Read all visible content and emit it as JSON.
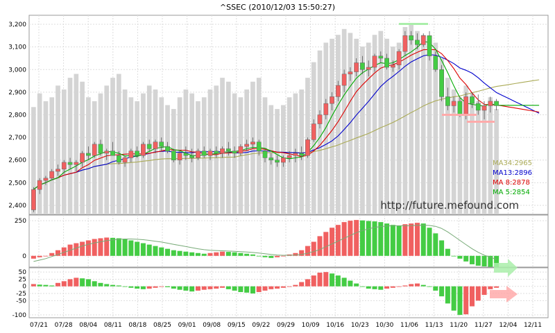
{
  "chart_data": {
    "type": "candlestick",
    "title": "^SSEC  (2010/12/03 15:50:27)",
    "watermark": "http://future.mefound.com",
    "x_labels": [
      "07/21",
      "07/28",
      "08/04",
      "08/11",
      "08/18",
      "08/25",
      "09/01",
      "09/08",
      "09/15",
      "09/22",
      "09/29",
      "10/09",
      "10/16",
      "10/23",
      "10/30",
      "11/06",
      "11/13",
      "11/20",
      "11/27",
      "12/04",
      "12/11"
    ],
    "price_axis": {
      "ticks": [
        2400,
        2500,
        2600,
        2700,
        2800,
        2900,
        3000,
        3100,
        3200
      ],
      "ylim": [
        2360,
        3240
      ]
    },
    "macd_axis": {
      "ticks": [
        0,
        250
      ],
      "ylim": [
        -80,
        290
      ]
    },
    "kdj_axis": {
      "ticks": [
        50,
        25,
        0,
        -25,
        -50,
        -100
      ],
      "ylim": [
        -110,
        65
      ]
    },
    "legend": [
      {
        "label": "MA34:2965",
        "color": "#aaaa55"
      },
      {
        "label": "MA13:2896",
        "color": "#0000cc"
      },
      {
        "label": "MA  8:2878",
        "color": "#dd0000"
      },
      {
        "label": "MA  5:2854",
        "color": "#00aa00"
      }
    ],
    "colors": {
      "up": "#f06060",
      "down": "#44cc44",
      "volume": "#d4d4d4",
      "grid": "#dddddd"
    },
    "ohlc": [
      [
        2380,
        2480,
        2370,
        2470
      ],
      [
        2470,
        2520,
        2450,
        2510
      ],
      [
        2510,
        2530,
        2490,
        2520
      ],
      [
        2520,
        2560,
        2510,
        2550
      ],
      [
        2550,
        2580,
        2530,
        2560
      ],
      [
        2560,
        2600,
        2540,
        2590
      ],
      [
        2590,
        2610,
        2560,
        2580
      ],
      [
        2580,
        2600,
        2550,
        2590
      ],
      [
        2590,
        2640,
        2570,
        2630
      ],
      [
        2630,
        2660,
        2600,
        2620
      ],
      [
        2620,
        2680,
        2610,
        2670
      ],
      [
        2670,
        2690,
        2620,
        2630
      ],
      [
        2630,
        2650,
        2600,
        2640
      ],
      [
        2640,
        2680,
        2620,
        2620
      ],
      [
        2620,
        2640,
        2580,
        2590
      ],
      [
        2590,
        2620,
        2570,
        2610
      ],
      [
        2610,
        2650,
        2590,
        2640
      ],
      [
        2640,
        2660,
        2610,
        2620
      ],
      [
        2620,
        2680,
        2610,
        2670
      ],
      [
        2670,
        2690,
        2640,
        2650
      ],
      [
        2650,
        2690,
        2630,
        2680
      ],
      [
        2680,
        2700,
        2640,
        2660
      ],
      [
        2660,
        2680,
        2630,
        2640
      ],
      [
        2640,
        2650,
        2590,
        2600
      ],
      [
        2600,
        2640,
        2580,
        2630
      ],
      [
        2630,
        2660,
        2600,
        2620
      ],
      [
        2620,
        2650,
        2590,
        2610
      ],
      [
        2610,
        2650,
        2600,
        2640
      ],
      [
        2640,
        2660,
        2610,
        2620
      ],
      [
        2620,
        2650,
        2600,
        2640
      ],
      [
        2640,
        2660,
        2610,
        2630
      ],
      [
        2630,
        2660,
        2610,
        2650
      ],
      [
        2650,
        2680,
        2620,
        2640
      ],
      [
        2640,
        2660,
        2610,
        2630
      ],
      [
        2630,
        2670,
        2620,
        2660
      ],
      [
        2660,
        2690,
        2640,
        2670
      ],
      [
        2670,
        2700,
        2650,
        2680
      ],
      [
        2680,
        2690,
        2620,
        2640
      ],
      [
        2640,
        2650,
        2590,
        2610
      ],
      [
        2610,
        2630,
        2580,
        2600
      ],
      [
        2600,
        2620,
        2570,
        2590
      ],
      [
        2590,
        2620,
        2570,
        2610
      ],
      [
        2610,
        2640,
        2590,
        2620
      ],
      [
        2620,
        2650,
        2590,
        2630
      ],
      [
        2630,
        2660,
        2600,
        2620
      ],
      [
        2620,
        2700,
        2610,
        2690
      ],
      [
        2690,
        2780,
        2680,
        2760
      ],
      [
        2760,
        2820,
        2740,
        2800
      ],
      [
        2800,
        2870,
        2780,
        2850
      ],
      [
        2850,
        2900,
        2820,
        2880
      ],
      [
        2880,
        2950,
        2860,
        2930
      ],
      [
        2930,
        3000,
        2900,
        2980
      ],
      [
        2980,
        3010,
        2950,
        2990
      ],
      [
        2990,
        3050,
        2970,
        3030
      ],
      [
        3030,
        3060,
        2980,
        3000
      ],
      [
        3000,
        3040,
        2970,
        3010
      ],
      [
        3010,
        3070,
        2990,
        3060
      ],
      [
        3060,
        3080,
        3030,
        3050
      ],
      [
        3050,
        3070,
        3000,
        3010
      ],
      [
        3010,
        3040,
        2990,
        3020
      ],
      [
        3020,
        3090,
        3000,
        3080
      ],
      [
        3080,
        3170,
        3060,
        3150
      ],
      [
        3150,
        3170,
        3110,
        3130
      ],
      [
        3130,
        3160,
        3090,
        3110
      ],
      [
        3110,
        3160,
        3100,
        3150
      ],
      [
        3150,
        3170,
        3040,
        3060
      ],
      [
        3060,
        3080,
        2990,
        3000
      ],
      [
        3000,
        3020,
        2860,
        2880
      ],
      [
        2880,
        2920,
        2820,
        2840
      ],
      [
        2840,
        2880,
        2810,
        2860
      ],
      [
        2860,
        2880,
        2790,
        2800
      ],
      [
        2800,
        2900,
        2780,
        2880
      ],
      [
        2880,
        2900,
        2830,
        2850
      ],
      [
        2850,
        2890,
        2800,
        2820
      ],
      [
        2820,
        2860,
        2780,
        2840
      ],
      [
        2840,
        2880,
        2810,
        2860
      ],
      [
        2860,
        2870,
        2820,
        2840
      ]
    ],
    "volume": [
      55,
      62,
      58,
      60,
      66,
      64,
      70,
      72,
      68,
      60,
      58,
      62,
      66,
      70,
      72,
      64,
      60,
      58,
      62,
      66,
      64,
      60,
      56,
      54,
      60,
      64,
      62,
      58,
      60,
      64,
      66,
      70,
      68,
      62,
      60,
      64,
      68,
      70,
      60,
      56,
      54,
      56,
      60,
      62,
      64,
      70,
      78,
      84,
      88,
      90,
      92,
      95,
      93,
      90,
      86,
      88,
      92,
      94,
      90,
      86,
      88,
      96,
      98,
      94,
      92,
      90,
      88,
      80,
      70,
      64,
      60,
      66,
      62,
      58,
      56,
      60,
      54
    ],
    "macd": [
      -20,
      -10,
      0,
      20,
      40,
      60,
      80,
      90,
      100,
      110,
      120,
      125,
      130,
      128,
      125,
      120,
      110,
      100,
      90,
      80,
      70,
      60,
      50,
      40,
      35,
      30,
      25,
      20,
      15,
      20,
      25,
      30,
      28,
      25,
      20,
      15,
      10,
      0,
      -10,
      -15,
      -10,
      0,
      10,
      20,
      40,
      70,
      100,
      140,
      170,
      200,
      220,
      240,
      250,
      255,
      252,
      248,
      245,
      240,
      230,
      220,
      215,
      225,
      230,
      235,
      230,
      200,
      160,
      110,
      50,
      0,
      -20,
      -40,
      -60,
      -70,
      -75,
      -78,
      -80
    ],
    "macd_signal": [
      -40,
      -30,
      -20,
      -5,
      10,
      25,
      40,
      55,
      70,
      82,
      92,
      100,
      108,
      114,
      118,
      120,
      120,
      118,
      115,
      110,
      104,
      98,
      90,
      82,
      74,
      66,
      58,
      50,
      44,
      40,
      38,
      36,
      34,
      32,
      30,
      27,
      24,
      20,
      15,
      10,
      6,
      4,
      4,
      6,
      10,
      18,
      30,
      45,
      65,
      85,
      105,
      125,
      145,
      165,
      180,
      192,
      202,
      208,
      212,
      214,
      214,
      214,
      215,
      217,
      218,
      216,
      210,
      195,
      170,
      140,
      110,
      80,
      50,
      25,
      5,
      -10,
      -25
    ],
    "kdj": [
      8,
      6,
      5,
      3,
      12,
      18,
      25,
      30,
      28,
      25,
      18,
      12,
      8,
      5,
      3,
      0,
      -5,
      -8,
      -10,
      -8,
      -5,
      0,
      -3,
      -8,
      -12,
      -15,
      -18,
      -15,
      -12,
      -10,
      -8,
      -5,
      -10,
      -15,
      -20,
      -22,
      -25,
      -20,
      -15,
      -10,
      -8,
      -5,
      0,
      5,
      15,
      25,
      38,
      48,
      50,
      45,
      38,
      30,
      20,
      10,
      0,
      -8,
      -10,
      -12,
      -8,
      -5,
      0,
      3,
      8,
      10,
      5,
      0,
      -15,
      -35,
      -60,
      -85,
      -100,
      -98,
      -70,
      -50,
      -30,
      -10,
      -5
    ]
  }
}
